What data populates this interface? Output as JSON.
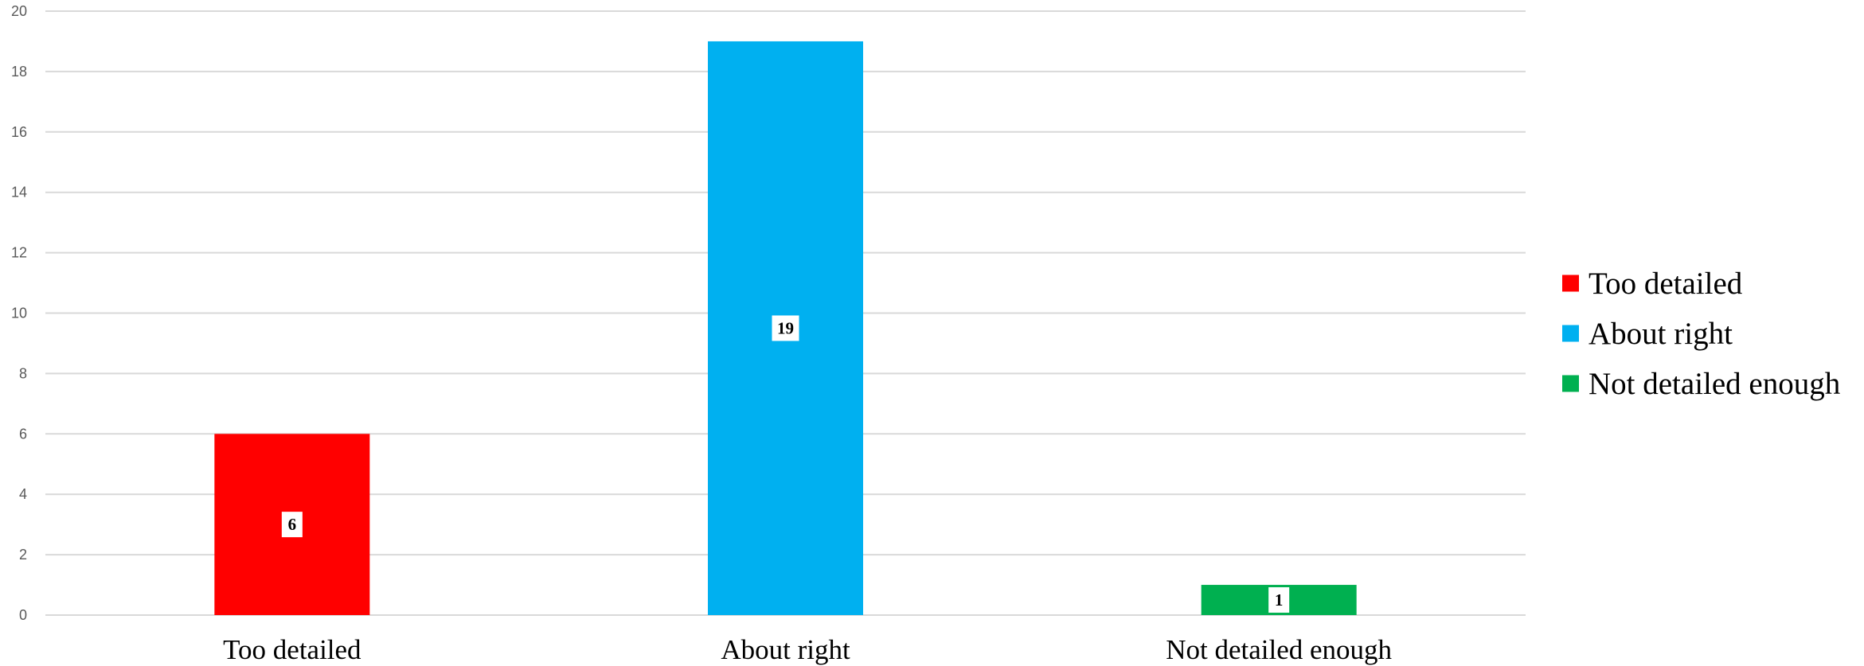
{
  "chart_data": {
    "type": "bar",
    "categories": [
      "Too detailed",
      "About right",
      "Not detailed enough"
    ],
    "values": [
      6,
      19,
      1
    ],
    "colors": [
      "#ff0000",
      "#00b0f0",
      "#00b050"
    ],
    "ylim": [
      0,
      20
    ],
    "yticks": [
      0,
      2,
      4,
      6,
      8,
      10,
      12,
      14,
      16,
      18,
      20
    ],
    "grid": true,
    "legend_position": "right",
    "legend": [
      "Too detailed",
      "About right",
      "Not detailed enough"
    ],
    "data_labels": [
      "6",
      "19",
      "1"
    ],
    "title": "",
    "xlabel": "",
    "ylabel": ""
  }
}
